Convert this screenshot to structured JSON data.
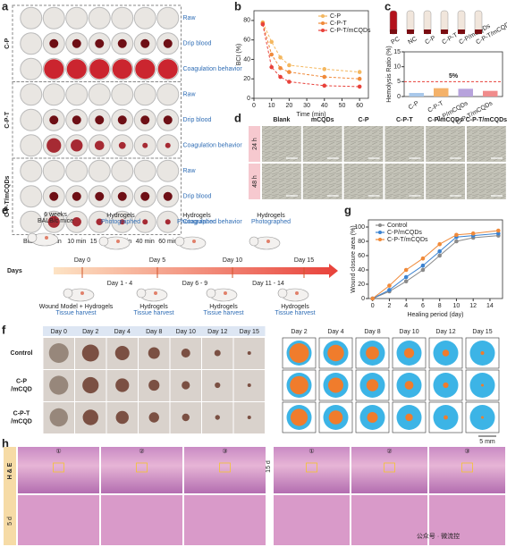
{
  "panel_labels": [
    "a",
    "b",
    "c",
    "d",
    "e",
    "f",
    "g",
    "h"
  ],
  "panel_a": {
    "row_groups": [
      "C-P",
      "C-P-T",
      "C-P-T/mCQDs"
    ],
    "row_labels": [
      "Raw",
      "Drip blood",
      "Coagulation behavior"
    ],
    "columns": [
      "Blank",
      "5 min",
      "10 min",
      "15 min",
      "20 min",
      "40 min",
      "60 min"
    ]
  },
  "chart_data": [
    {
      "type": "line",
      "xlabel": "Time (min)",
      "ylabel": "BCI (%)",
      "x": [
        5,
        10,
        15,
        20,
        40,
        60
      ],
      "xlim": [
        0,
        65
      ],
      "xticks": [
        0,
        10,
        20,
        30,
        40,
        50,
        60
      ],
      "ylim": [
        0,
        90
      ],
      "yticks": [
        0,
        20,
        40,
        60,
        80
      ],
      "legend": "upper right",
      "series": [
        {
          "name": "C-P",
          "color": "#f4b860",
          "values": [
            78,
            58,
            42,
            34,
            30,
            27
          ]
        },
        {
          "name": "C-P-T",
          "color": "#f08a3a",
          "values": [
            77,
            45,
            31,
            27,
            22,
            20
          ]
        },
        {
          "name": "C-P-T/mCQDs",
          "color": "#e8413a",
          "values": [
            76,
            32,
            22,
            17,
            13,
            12
          ]
        }
      ]
    },
    {
      "type": "bar",
      "ylabel": "Hemolysis Ratio (%)",
      "tube_labels": [
        "PC",
        "NC",
        "C-P",
        "C-P-T",
        "C-P/mCQDs",
        "C-P-T/mCQDs"
      ],
      "categories": [
        "C-P",
        "C-P-T",
        "C-P/mCQDs",
        "C-P-T/mCQDs"
      ],
      "values": [
        1.2,
        2.8,
        2.6,
        1.9
      ],
      "colors": [
        "#a9c8ea",
        "#f4b26a",
        "#b7a3dc",
        "#f08c8c"
      ],
      "ylim": [
        0,
        15
      ],
      "yticks": [
        0,
        5,
        10,
        15
      ],
      "threshold": {
        "value": 5,
        "label": "5%"
      }
    },
    {
      "type": "line",
      "xlabel": "Healing period (day)",
      "ylabel": "Wound closure area (%)",
      "x": [
        0,
        2,
        4,
        6,
        8,
        10,
        12,
        15
      ],
      "xlim": [
        -0.5,
        15.5
      ],
      "xticks": [
        0,
        2,
        4,
        6,
        8,
        10,
        12,
        14
      ],
      "ylim": [
        0,
        110
      ],
      "yticks": [
        0,
        20,
        40,
        60,
        80,
        100
      ],
      "legend": "upper left",
      "series": [
        {
          "name": "Control",
          "color": "#8a8a8a",
          "values": [
            0,
            10,
            24,
            40,
            60,
            80,
            85,
            88
          ]
        },
        {
          "name": "C-P/mCQDs",
          "color": "#3b82d0",
          "values": [
            0,
            12,
            30,
            46,
            66,
            86,
            88,
            91
          ]
        },
        {
          "name": "C-P-T/mCQDs",
          "color": "#f08a3a",
          "values": [
            0,
            18,
            40,
            56,
            76,
            89,
            91,
            95
          ]
        }
      ]
    }
  ],
  "panel_d": {
    "columns": [
      "Blank",
      "mCQDs",
      "C-P",
      "C-P-T",
      "C-P/mCQDs",
      "C-P-T/mCQDs"
    ],
    "rows": [
      "24 h",
      "48 h"
    ]
  },
  "panel_e": {
    "axis": "Days",
    "mice": [
      "6 weeks",
      "BALB/c mice"
    ],
    "top_days": [
      "Day 0",
      "Day 5",
      "Day 10",
      "Day 15"
    ],
    "bottom_days": [
      "Day 1 - 4",
      "Day 6 - 9",
      "Day 11 - 14"
    ],
    "photographed": {
      "title": "Hydrogels",
      "subtitle": "Photographed"
    },
    "model": {
      "title": "Wound Model + Hydrogels",
      "subtitle": "Tissue harvest"
    },
    "harvest": {
      "title": "Hydrogels",
      "subtitle": "Tissue harvest"
    }
  },
  "panel_f": {
    "photo_columns": [
      "Day 0",
      "Day 2",
      "Day 4",
      "Day 8",
      "Day 10",
      "Day 12",
      "Day 15"
    ],
    "rows": [
      [
        "Control"
      ],
      [
        "C-P",
        "/mCQD"
      ],
      [
        "C-P-T",
        "/mCQD"
      ]
    ],
    "trace_columns": [
      "Day 2",
      "Day 4",
      "Day 8",
      "Day 10",
      "Day 12",
      "Day 15"
    ],
    "scale_bar": "5 mm"
  },
  "panel_h": {
    "stain": "H & E",
    "timepoints": [
      "5 d",
      "15 d"
    ],
    "sections": [
      "①",
      "②",
      "③"
    ]
  },
  "watermark": "公众号 · 微流控"
}
